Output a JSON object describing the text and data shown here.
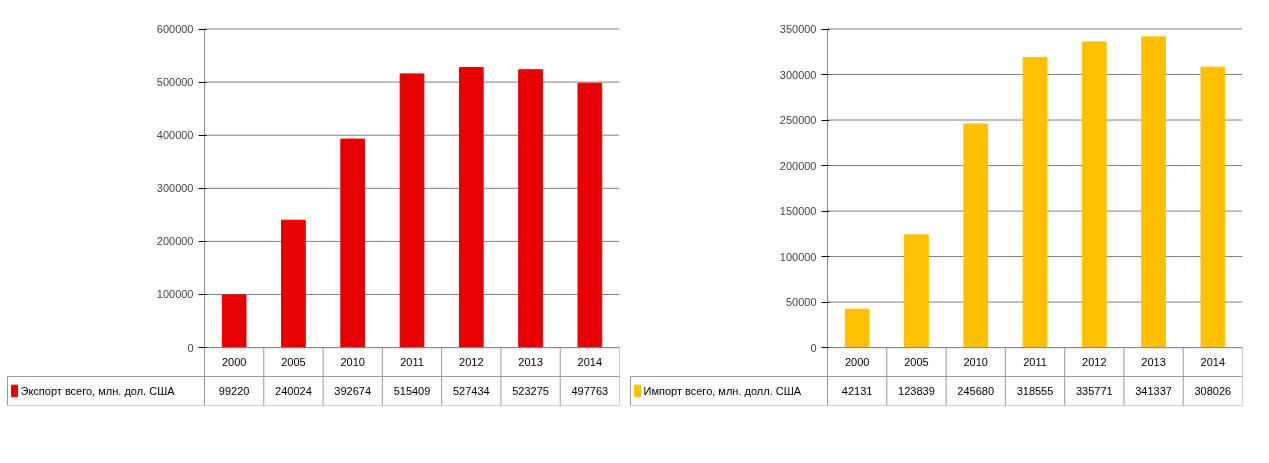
{
  "chart_data": [
    {
      "type": "bar",
      "categories": [
        "2000",
        "2005",
        "2010",
        "2011",
        "2012",
        "2013",
        "2014"
      ],
      "series": [
        {
          "name": "Экспорт всего, млн. дол. США",
          "color": "#e60000",
          "values": [
            99220,
            240024,
            392674,
            515409,
            527434,
            523275,
            497763
          ]
        }
      ],
      "ylim": [
        0,
        600000
      ],
      "yticks": [
        0,
        100000,
        200000,
        300000,
        400000,
        500000,
        600000
      ],
      "grid": "y",
      "legend": "bottom",
      "data_labels": true
    },
    {
      "type": "bar",
      "categories": [
        "2000",
        "2005",
        "2010",
        "2011",
        "2012",
        "2013",
        "2014"
      ],
      "series": [
        {
          "name": "Импорт всего, млн. долл. США",
          "color": "#ffc000",
          "values": [
            42131,
            123839,
            245680,
            318555,
            335771,
            341337,
            308026
          ]
        }
      ],
      "ylim": [
        0,
        350000
      ],
      "yticks": [
        0,
        50000,
        100000,
        150000,
        200000,
        250000,
        300000,
        350000
      ],
      "grid": "y",
      "legend": "bottom",
      "data_labels": true
    }
  ]
}
